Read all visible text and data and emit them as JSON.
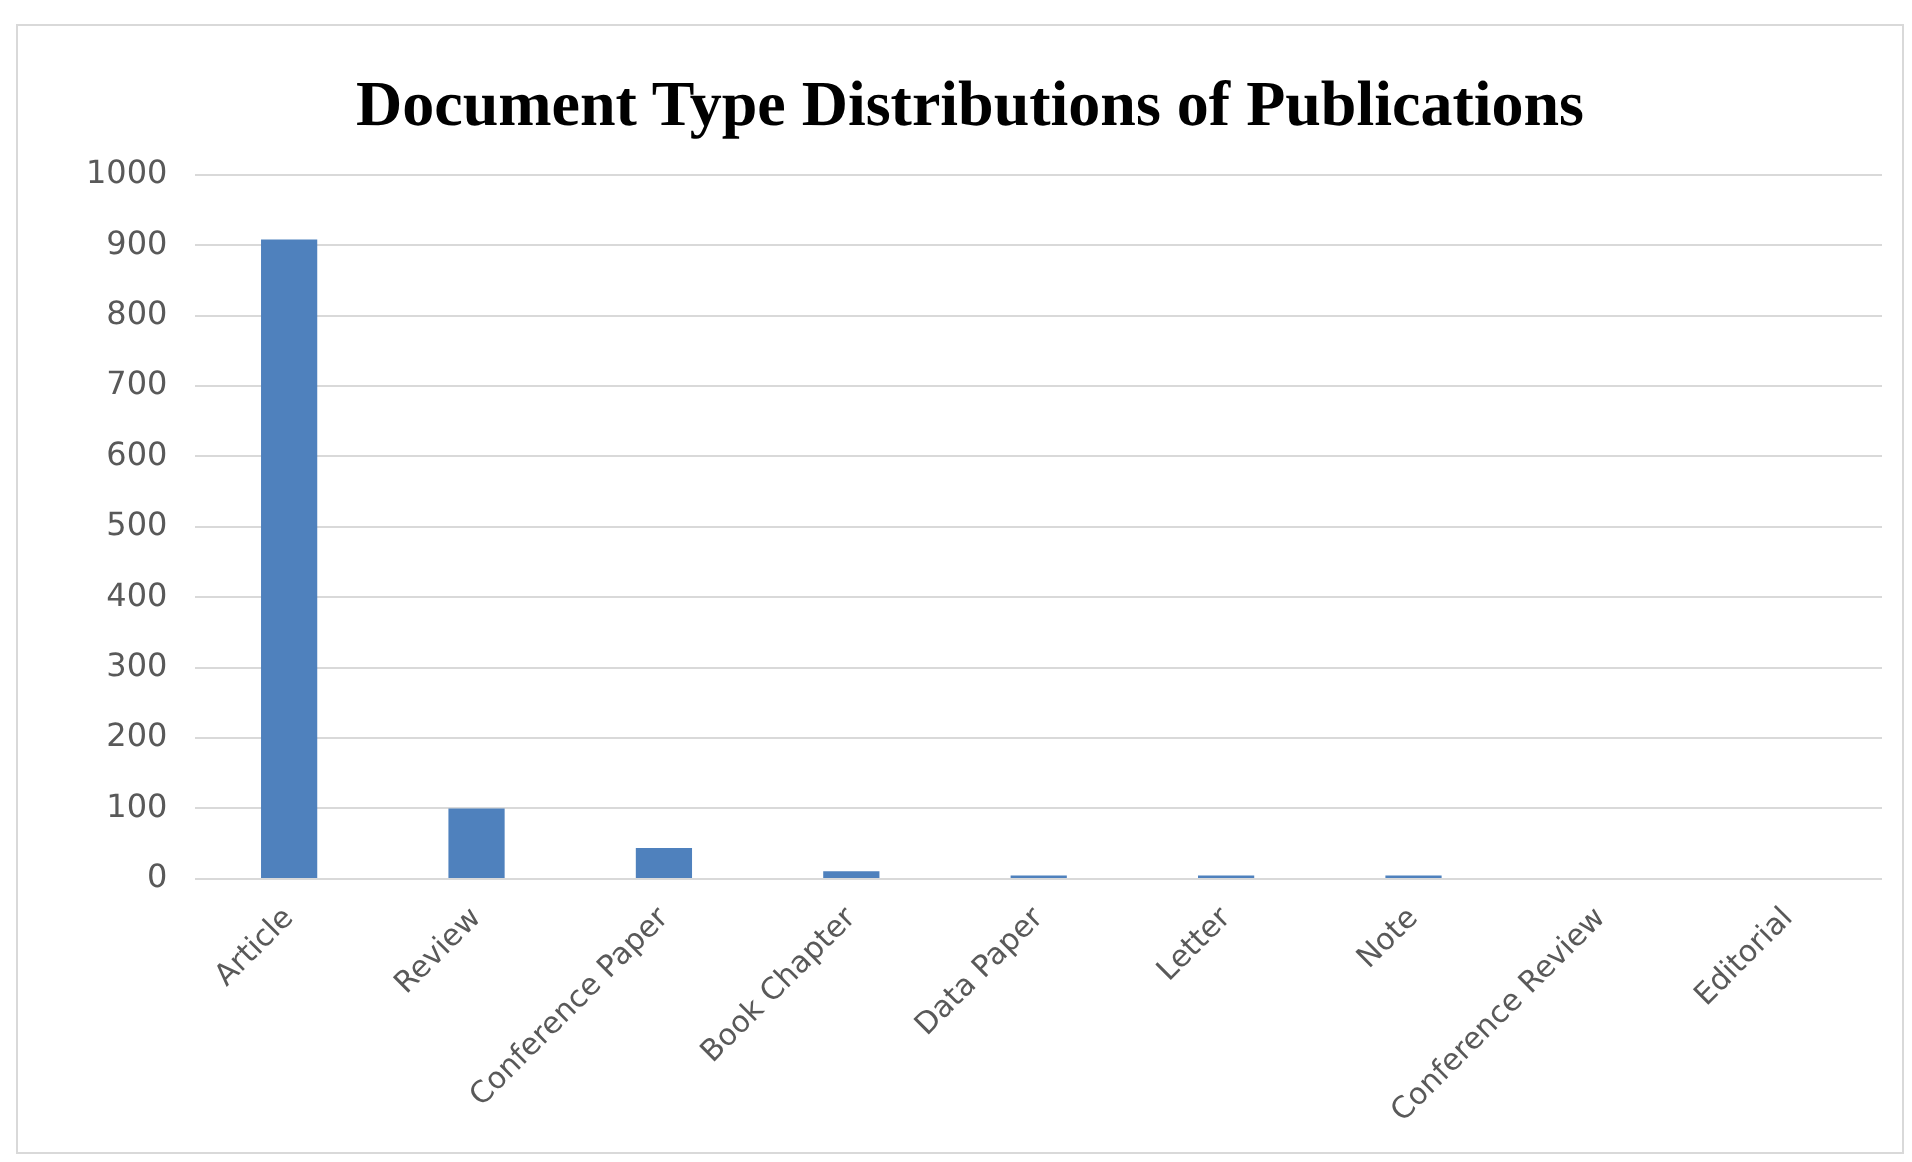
{
  "chart_data": {
    "type": "bar",
    "title": "Document Type Distributions of Publications",
    "categories": [
      "Article",
      "Review",
      "Conference Paper",
      "Book Chapter",
      "Data Paper",
      "Letter",
      "Note",
      "Conference Review",
      "Editorial"
    ],
    "values": [
      908,
      100,
      44,
      11,
      5,
      5,
      5,
      null,
      null
    ],
    "color": "#4f81bd",
    "ylim": [
      0,
      1000
    ],
    "yticks": [
      0,
      100,
      200,
      300,
      400,
      500,
      600,
      700,
      800,
      900,
      1000
    ],
    "grid": "y"
  }
}
